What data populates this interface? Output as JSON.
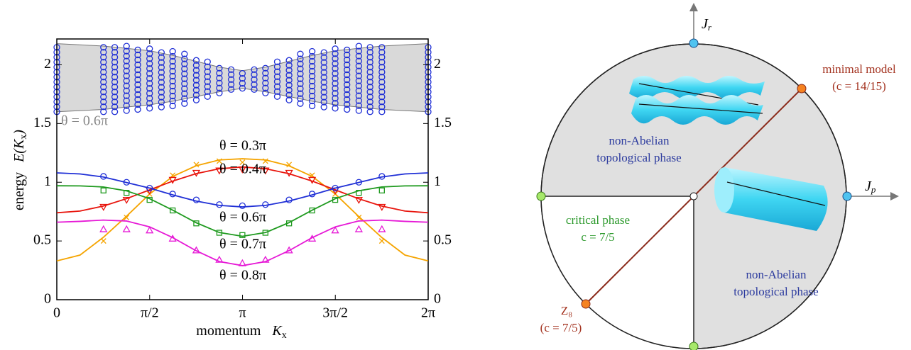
{
  "chart_data": {
    "type": "line",
    "xlabel": "momentum",
    "xlabel_symbol": "K",
    "xlabel_sub": "x",
    "ylabel": "energy",
    "ylabel_symbol": "E(K",
    "ylabel_sub": "x",
    "ylabel_close": ")",
    "xlim": [
      0,
      6.283
    ],
    "ylim": [
      0,
      2.22
    ],
    "xticks": [
      0,
      {
        "value": 1.571,
        "label": "π/2"
      },
      {
        "value": 3.142,
        "label": "π"
      },
      {
        "value": 4.712,
        "label": "3π/2"
      },
      {
        "value": 6.283,
        "label": "2π"
      }
    ],
    "yticks": [
      0,
      0.5,
      1,
      1.5,
      2
    ],
    "x": [
      0,
      0.393,
      0.785,
      1.178,
      1.571,
      1.963,
      2.356,
      2.749,
      3.142,
      3.534,
      3.927,
      4.32,
      4.712,
      5.105,
      5.498,
      5.89,
      6.283
    ],
    "marker_x": [
      0.79,
      1.18,
      1.57,
      1.96,
      2.36,
      2.75,
      3.14,
      3.53,
      3.93,
      4.32,
      4.71,
      5.11,
      5.5
    ],
    "series": [
      {
        "name": "θ = 0.3π",
        "color": "#f5a400",
        "marker": "x",
        "values": [
          0.33,
          0.38,
          0.53,
          0.71,
          0.9,
          1.05,
          1.14,
          1.19,
          1.2,
          1.19,
          1.14,
          1.05,
          0.9,
          0.71,
          0.53,
          0.38,
          0.33
        ],
        "marker_values": [
          0.5,
          0.7,
          0.9,
          1.06,
          1.15,
          1.18,
          1.17,
          1.18,
          1.15,
          1.06,
          0.9,
          0.7,
          0.5
        ]
      },
      {
        "name": "θ = 0.4π",
        "color": "#e8140c",
        "marker": "triangle-down",
        "values": [
          0.74,
          0.755,
          0.797,
          0.86,
          0.935,
          1.01,
          1.073,
          1.115,
          1.13,
          1.115,
          1.073,
          1.01,
          0.935,
          0.86,
          0.797,
          0.755,
          0.74
        ],
        "marker_values": [
          0.79,
          0.85,
          0.93,
          1.02,
          1.08,
          1.1,
          1.11,
          1.1,
          1.08,
          1.02,
          0.93,
          0.85,
          0.79
        ]
      },
      {
        "name": "θ = 0.6π",
        "color": "#1f2fd6",
        "marker": "circle",
        "values": [
          1.08,
          1.071,
          1.045,
          0.998,
          0.95,
          0.892,
          0.84,
          0.803,
          0.79,
          0.803,
          0.84,
          0.892,
          0.95,
          0.998,
          1.045,
          1.071,
          1.08
        ],
        "marker_values": [
          1.05,
          1.0,
          0.95,
          0.9,
          0.85,
          0.81,
          0.8,
          0.81,
          0.85,
          0.9,
          0.95,
          1.0,
          1.05
        ]
      },
      {
        "name": "θ = 0.7π",
        "color": "#1f9a1f",
        "marker": "square",
        "values": [
          0.97,
          0.969,
          0.96,
          0.927,
          0.86,
          0.762,
          0.656,
          0.572,
          0.54,
          0.572,
          0.656,
          0.762,
          0.86,
          0.927,
          0.96,
          0.969,
          0.97
        ],
        "marker_values": [
          0.93,
          0.91,
          0.85,
          0.76,
          0.65,
          0.57,
          0.55,
          0.57,
          0.65,
          0.76,
          0.85,
          0.91,
          0.93
        ]
      },
      {
        "name": "θ = 0.8π",
        "color": "#e619d6",
        "marker": "triangle-up",
        "values": [
          0.66,
          0.667,
          0.678,
          0.67,
          0.62,
          0.528,
          0.417,
          0.325,
          0.29,
          0.325,
          0.417,
          0.528,
          0.62,
          0.67,
          0.678,
          0.667,
          0.66
        ],
        "marker_values": [
          0.6,
          0.6,
          0.59,
          0.52,
          0.42,
          0.34,
          0.31,
          0.34,
          0.42,
          0.52,
          0.59,
          0.6,
          0.6
        ]
      }
    ],
    "band": {
      "name": "θ = 0.6π",
      "color": "#d9d9d9",
      "lower": [
        1.6,
        1.61,
        1.62,
        1.64,
        1.66,
        1.69,
        1.73,
        1.77,
        1.8,
        1.77,
        1.73,
        1.69,
        1.66,
        1.64,
        1.62,
        1.61,
        1.6
      ],
      "upper": [
        2.18,
        2.17,
        2.16,
        2.14,
        2.12,
        2.08,
        2.03,
        1.98,
        1.95,
        1.98,
        2.03,
        2.08,
        2.12,
        2.14,
        2.16,
        2.17,
        2.18
      ]
    },
    "spectrum": {
      "color": "#1f2fd6",
      "x": [
        0,
        0.79,
        0.98,
        1.18,
        1.37,
        1.57,
        1.77,
        1.96,
        2.16,
        2.36,
        2.55,
        2.75,
        2.95,
        3.14,
        3.34,
        3.53,
        3.73,
        3.93,
        4.12,
        4.32,
        4.52,
        4.71,
        4.91,
        5.11,
        5.3,
        5.5,
        6.283
      ],
      "ymin": [
        1.6,
        1.6,
        1.6,
        1.61,
        1.62,
        1.63,
        1.64,
        1.65,
        1.67,
        1.7,
        1.73,
        1.76,
        1.79,
        1.8,
        1.79,
        1.76,
        1.73,
        1.7,
        1.67,
        1.65,
        1.64,
        1.63,
        1.62,
        1.61,
        1.6,
        1.6,
        1.6
      ],
      "ymax": [
        2.17,
        2.16,
        2.16,
        2.16,
        2.15,
        2.15,
        2.14,
        2.12,
        2.1,
        2.07,
        2.04,
        2.01,
        1.98,
        1.95,
        1.98,
        2.01,
        2.04,
        2.07,
        2.1,
        2.12,
        2.14,
        2.15,
        2.15,
        2.16,
        2.16,
        2.16,
        2.17
      ]
    }
  },
  "diagram": {
    "axis_vertical": "J",
    "axis_vertical_sub": "r",
    "axis_horizontal": "J",
    "axis_horizontal_sub": "p",
    "minimal_model": "minimal model",
    "minimal_model_c": "(c = 14/15)",
    "upper_phase": [
      "non-Abelian",
      "topological phase"
    ],
    "lower_phase": [
      "non-Abelian",
      "topological phase"
    ],
    "critical_phase": "critical phase",
    "critical_c": "c = 7/5",
    "z8": "Z₈",
    "z8_c": "(c = 7/5)"
  }
}
